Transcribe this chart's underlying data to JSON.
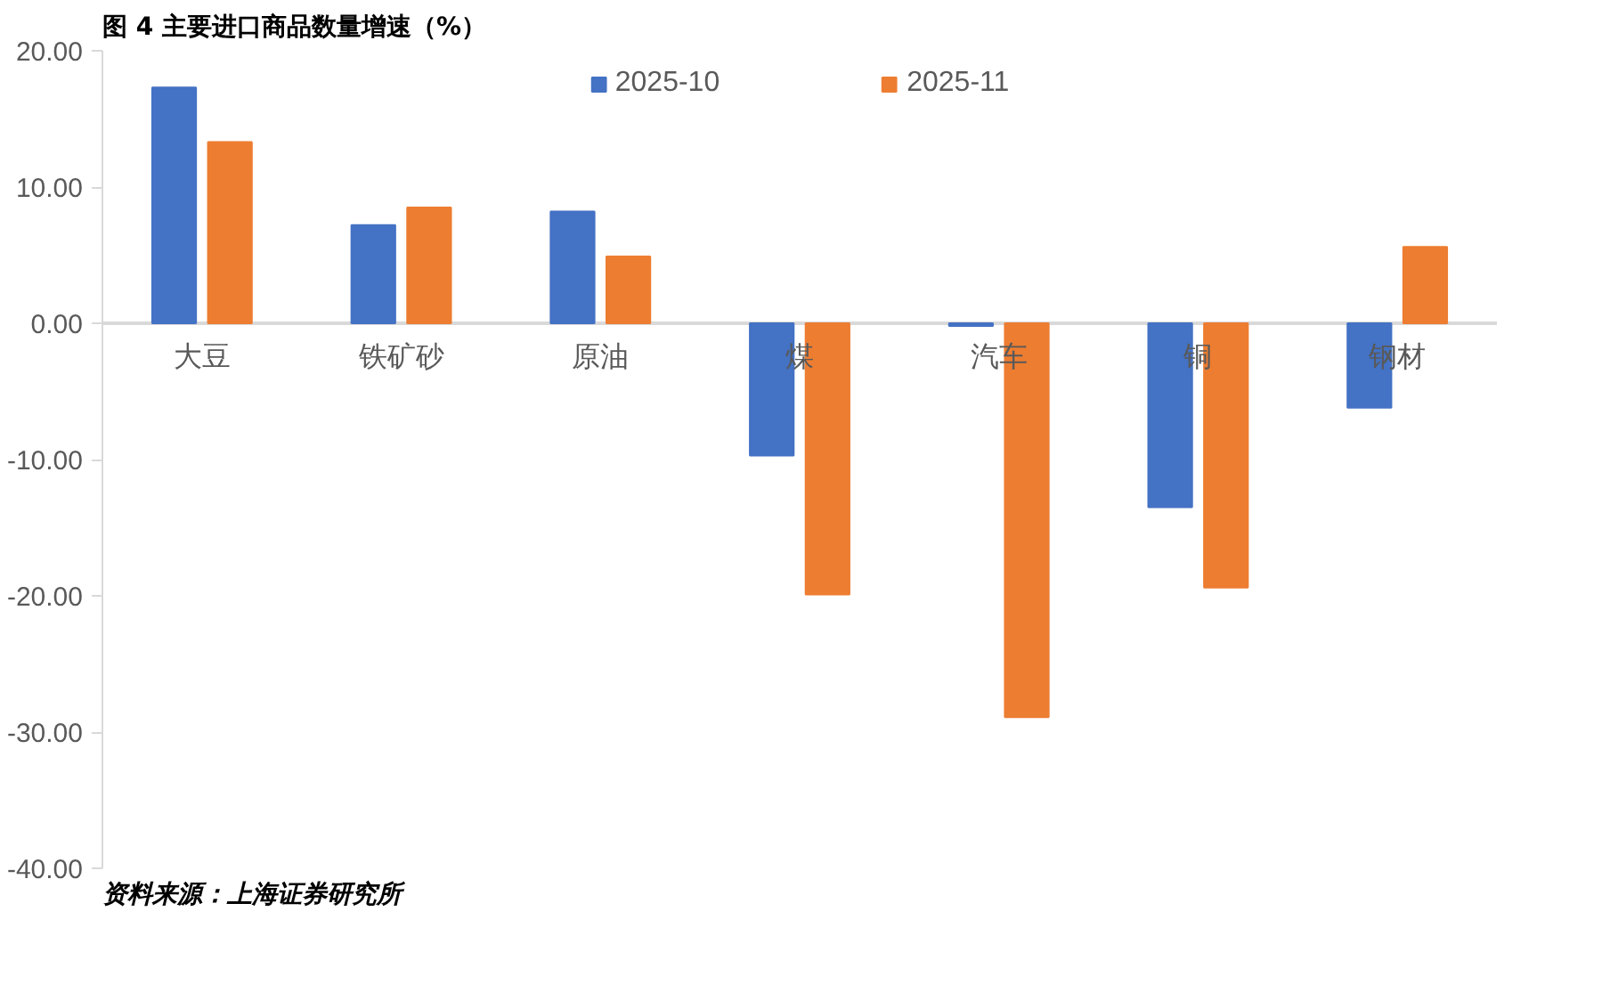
{
  "chart_data": {
    "type": "bar",
    "title": "图 4 主要进口商品数量增速（%）",
    "categories": [
      "大豆",
      "铁矿砂",
      "原油",
      "煤",
      "汽车",
      "铜",
      "钢材"
    ],
    "series": [
      {
        "name": "2025-10",
        "color": "#4472c4",
        "values": [
          17.3,
          7.2,
          8.2,
          -9.7,
          -0.2,
          -13.5,
          -6.2
        ]
      },
      {
        "name": "2025-11",
        "color": "#ed7d31",
        "values": [
          13.3,
          8.5,
          4.9,
          -19.9,
          -28.9,
          -19.4,
          5.6
        ]
      }
    ],
    "ylim": [
      -40,
      20
    ],
    "yticks": [
      {
        "value": 20,
        "label": "20.00"
      },
      {
        "value": 10,
        "label": "10.00"
      },
      {
        "value": 0,
        "label": "0.00"
      },
      {
        "value": -10,
        "label": "-10.00"
      },
      {
        "value": -20,
        "label": "-20.00"
      },
      {
        "value": -30,
        "label": "-30.00"
      },
      {
        "value": -40,
        "label": "-40.00"
      }
    ],
    "grid": false,
    "legend": "top",
    "annotations": [
      "资料来源：上海证券研究所"
    ]
  }
}
